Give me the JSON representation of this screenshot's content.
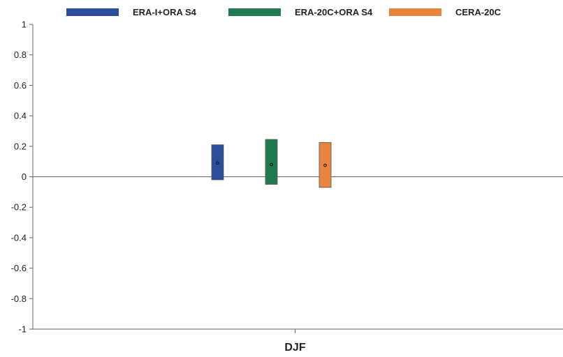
{
  "chart_data": {
    "type": "box",
    "categories": [
      "DJF"
    ],
    "ylim": [
      -1,
      1
    ],
    "yticks": [
      1,
      0.8,
      0.6,
      0.4,
      0.2,
      0,
      -0.2,
      -0.4,
      -0.6,
      -0.8,
      -1
    ],
    "grid": false,
    "legend_position": "top",
    "series": [
      {
        "name": "ERA-I+ORA S4",
        "color": "#2a4e9b",
        "low": -0.02,
        "high": 0.21,
        "center": 0.09
      },
      {
        "name": "ERA-20C+ORA S4",
        "color": "#1f7a4f",
        "low": -0.05,
        "high": 0.245,
        "center": 0.08
      },
      {
        "name": "CERA-20C",
        "color": "#e8843f",
        "low": -0.07,
        "high": 0.225,
        "center": 0.075
      }
    ]
  }
}
